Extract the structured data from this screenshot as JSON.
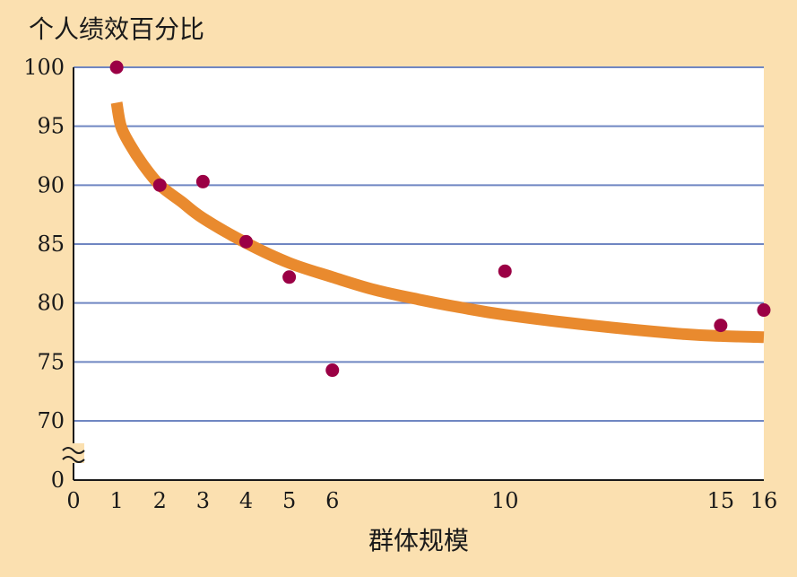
{
  "chart_data": {
    "type": "scatter",
    "title": "",
    "ylabel": "个人绩效百分比",
    "xlabel": "群体规模",
    "xlim": [
      0,
      16
    ],
    "ylim": [
      70,
      100
    ],
    "y_axis_break": true,
    "y_axis_break_label": "0",
    "x_ticks": [
      0,
      1,
      2,
      3,
      4,
      5,
      6,
      10,
      15,
      16
    ],
    "y_ticks": [
      70,
      75,
      80,
      85,
      90,
      95,
      100
    ],
    "grid": "horizontal",
    "points": [
      {
        "x": 1,
        "y": 100
      },
      {
        "x": 2,
        "y": 90
      },
      {
        "x": 3,
        "y": 90.3
      },
      {
        "x": 4,
        "y": 85.2
      },
      {
        "x": 5,
        "y": 82.2
      },
      {
        "x": 6,
        "y": 74.3
      },
      {
        "x": 10,
        "y": 82.7
      },
      {
        "x": 15,
        "y": 78.1
      },
      {
        "x": 16,
        "y": 79.4
      }
    ],
    "trend_curve": [
      {
        "x": 1,
        "y": 97.0
      },
      {
        "x": 1.1,
        "y": 95.0
      },
      {
        "x": 1.3,
        "y": 93.5
      },
      {
        "x": 1.6,
        "y": 91.8
      },
      {
        "x": 2,
        "y": 90.0
      },
      {
        "x": 2.5,
        "y": 88.6
      },
      {
        "x": 3,
        "y": 87.2
      },
      {
        "x": 4,
        "y": 85.1
      },
      {
        "x": 5,
        "y": 83.4
      },
      {
        "x": 6,
        "y": 82.2
      },
      {
        "x": 7,
        "y": 81.1
      },
      {
        "x": 8,
        "y": 80.3
      },
      {
        "x": 9,
        "y": 79.6
      },
      {
        "x": 10,
        "y": 79.0
      },
      {
        "x": 12,
        "y": 78.1
      },
      {
        "x": 14,
        "y": 77.4
      },
      {
        "x": 15,
        "y": 77.2
      },
      {
        "x": 16,
        "y": 77.1
      }
    ],
    "colors": {
      "background": "#fbe0b0",
      "plot_background": "#ffffff",
      "grid": "#6f86c2",
      "point": "#9b0045",
      "trend": "#e98a2e",
      "axis": "#1a1a1a"
    }
  }
}
